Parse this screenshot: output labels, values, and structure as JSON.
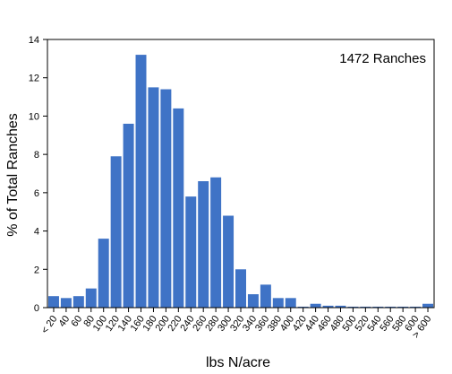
{
  "chart_data": {
    "type": "bar",
    "annotation": "1472 Ranches",
    "xlabel": "lbs N/acre",
    "ylabel": "% of Total Ranches",
    "ylim": [
      0,
      14
    ],
    "yticks": [
      "0",
      "2",
      "4",
      "6",
      "8",
      "10",
      "12",
      "14"
    ],
    "grid": false,
    "categories": [
      "< 20",
      "40",
      "60",
      "80",
      "100",
      "120",
      "140",
      "160",
      "180",
      "200",
      "220",
      "240",
      "260",
      "280",
      "300",
      "320",
      "340",
      "360",
      "380",
      "400",
      "420",
      "440",
      "460",
      "480",
      "500",
      "520",
      "540",
      "560",
      "580",
      "600",
      "> 600"
    ],
    "values": [
      0.6,
      0.5,
      0.6,
      1.0,
      3.6,
      7.9,
      9.6,
      13.2,
      11.5,
      11.4,
      10.4,
      5.8,
      6.6,
      6.8,
      4.8,
      2.0,
      0.7,
      1.2,
      0.5,
      0.5,
      0.05,
      0.2,
      0.1,
      0.1,
      0.05,
      0.05,
      0.05,
      0.05,
      0.05,
      0.05,
      0.2
    ],
    "bar_color": "#3f73c6"
  }
}
